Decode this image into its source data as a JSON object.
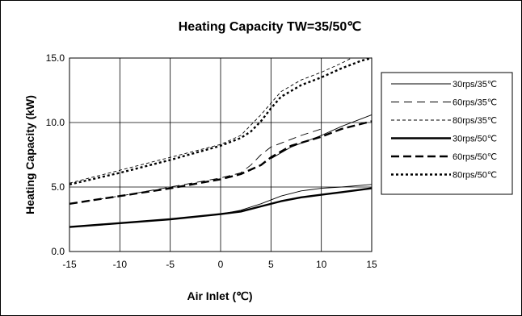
{
  "chart_data": {
    "type": "line",
    "title": "Heating Capacity TW=35/50℃",
    "xlabel": "Air Inlet (℃)",
    "ylabel": "Heating Capacity (kW)",
    "xlim": [
      -15,
      15
    ],
    "ylim": [
      0,
      15
    ],
    "xticks": [
      -15,
      -10,
      -5,
      0,
      5,
      10,
      15
    ],
    "yticks": [
      "0.0",
      "5.0",
      "10.0",
      "15.0"
    ],
    "grid": true,
    "legend_position": "right",
    "series": [
      {
        "name": "30rps/35℃",
        "style": "thin-solid",
        "points": [
          [
            -15,
            1.9
          ],
          [
            -10,
            2.2
          ],
          [
            -5,
            2.5
          ],
          [
            0,
            2.9
          ],
          [
            2,
            3.2
          ],
          [
            4,
            3.7
          ],
          [
            6,
            4.3
          ],
          [
            8,
            4.7
          ],
          [
            10,
            4.9
          ],
          [
            12,
            5.0
          ],
          [
            15,
            5.2
          ]
        ]
      },
      {
        "name": "60rps/35℃",
        "style": "thin-dash",
        "points": [
          [
            -15,
            3.7
          ],
          [
            -10,
            4.3
          ],
          [
            -5,
            5.0
          ],
          [
            0,
            5.7
          ],
          [
            2,
            6.1
          ],
          [
            3,
            6.7
          ],
          [
            4,
            7.5
          ],
          [
            5,
            8.1
          ],
          [
            7,
            8.7
          ],
          [
            8,
            9.0
          ],
          [
            10,
            9.5
          ]
        ]
      },
      {
        "name": "80rps/35℃",
        "style": "thin-shortdash",
        "points": [
          [
            -15,
            5.3
          ],
          [
            -10,
            6.3
          ],
          [
            -5,
            7.3
          ],
          [
            0,
            8.3
          ],
          [
            2,
            9.0
          ],
          [
            3,
            9.8
          ],
          [
            4,
            10.6
          ],
          [
            5,
            11.5
          ],
          [
            6,
            12.4
          ],
          [
            8,
            13.3
          ],
          [
            10,
            13.9
          ],
          [
            12,
            14.6
          ],
          [
            13,
            15.0
          ]
        ]
      },
      {
        "name": "30rps/50℃",
        "style": "thick-solid",
        "points": [
          [
            -15,
            1.9
          ],
          [
            -10,
            2.2
          ],
          [
            -5,
            2.5
          ],
          [
            0,
            2.9
          ],
          [
            2,
            3.1
          ],
          [
            4,
            3.5
          ],
          [
            6,
            3.9
          ],
          [
            8,
            4.2
          ],
          [
            10,
            4.4
          ],
          [
            12,
            4.6
          ],
          [
            15,
            4.9
          ]
        ]
      },
      {
        "name": "60rps/50℃",
        "style": "thick-dash",
        "points": [
          [
            -15,
            3.7
          ],
          [
            -10,
            4.3
          ],
          [
            -5,
            4.9
          ],
          [
            0,
            5.6
          ],
          [
            2,
            6.0
          ],
          [
            4,
            6.7
          ],
          [
            5,
            7.3
          ],
          [
            7,
            8.2
          ],
          [
            10,
            8.9
          ],
          [
            12,
            9.5
          ],
          [
            15,
            10.1
          ]
        ]
      },
      {
        "name": "80rps/50℃",
        "style": "thick-dot",
        "points": [
          [
            -15,
            5.2
          ],
          [
            -10,
            6.1
          ],
          [
            -5,
            7.1
          ],
          [
            0,
            8.2
          ],
          [
            2,
            8.8
          ],
          [
            3,
            9.3
          ],
          [
            4,
            10.1
          ],
          [
            5,
            11.1
          ],
          [
            6,
            12.0
          ],
          [
            8,
            12.9
          ],
          [
            10,
            13.5
          ],
          [
            12,
            14.2
          ],
          [
            14,
            14.8
          ],
          [
            15,
            15.0
          ]
        ]
      },
      {
        "name": "",
        "style": "thin-solid",
        "points": [
          [
            5,
            7.2
          ],
          [
            7,
            8.1
          ],
          [
            10,
            9.0
          ],
          [
            12,
            9.7
          ],
          [
            15,
            10.6
          ]
        ]
      }
    ]
  }
}
